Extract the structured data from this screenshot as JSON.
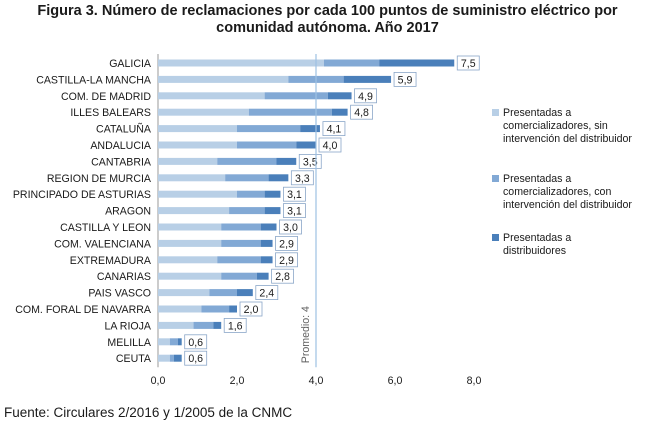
{
  "title_line1": "Figura 3. Número de reclamaciones por cada 100 puntos de suministro eléctrico por",
  "title_line2": "comunidad autónoma. Año 2017",
  "source": "Fuente: Circulares 2/2016 y 1/2005 de la CNMC",
  "colors": {
    "series": [
      "#b8cfe6",
      "#82a9d5",
      "#4a7fba"
    ],
    "label_border": "#8aa6c8",
    "ref_line": "#9ec1e3"
  },
  "chart_data": {
    "type": "bar",
    "orientation": "horizontal",
    "stacked": true,
    "categories": [
      "GALICIA",
      "CASTILLA-LA MANCHA",
      "COM. DE MADRID",
      "ILLES BALEARS",
      "CATALUÑA",
      "ANDALUCIA",
      "CANTABRIA",
      "REGION DE MURCIA",
      "PRINCIPADO DE ASTURIAS",
      "ARAGON",
      "CASTILLA Y LEON",
      "COM. VALENCIANA",
      "EXTREMADURA",
      "CANARIAS",
      "PAIS VASCO",
      "COM. FORAL DE NAVARRA",
      "LA RIOJA",
      "MELILLA",
      "CEUTA"
    ],
    "series": [
      {
        "name": "Presentadas a comercializadores, sin intervención del distribuidor",
        "values": [
          4.2,
          3.3,
          2.7,
          2.3,
          2.0,
          2.0,
          1.5,
          1.7,
          2.0,
          1.8,
          1.6,
          1.6,
          1.5,
          1.6,
          1.3,
          1.1,
          0.9,
          0.3,
          0.3
        ]
      },
      {
        "name": "Presentadas a comercializadores, con intervención del distribuidor",
        "values": [
          1.4,
          1.4,
          1.6,
          2.1,
          1.6,
          1.5,
          1.5,
          1.1,
          0.7,
          0.9,
          1.0,
          1.0,
          1.1,
          0.9,
          0.7,
          0.7,
          0.5,
          0.2,
          0.1
        ]
      },
      {
        "name": "Presentadas a distribuidores",
        "values": [
          1.9,
          1.2,
          0.6,
          0.4,
          0.5,
          0.5,
          0.5,
          0.5,
          0.4,
          0.4,
          0.4,
          0.3,
          0.3,
          0.3,
          0.4,
          0.2,
          0.2,
          0.1,
          0.2
        ]
      }
    ],
    "totals": [
      "7,5",
      "5,9",
      "4,9",
      "4,8",
      "4,1",
      "4,0",
      "3,5",
      "3,3",
      "3,1",
      "3,1",
      "3,0",
      "2,9",
      "2,9",
      "2,8",
      "2,4",
      "2,0",
      "1,6",
      "0,6",
      "0,6"
    ],
    "x_ticks": [
      "0,0",
      "2,0",
      "4,0",
      "6,0",
      "8,0"
    ],
    "xlim": [
      0,
      8
    ],
    "reference_line": {
      "value": 4,
      "label": "Promedio: 4"
    },
    "legend_position": "right",
    "grid": false
  }
}
